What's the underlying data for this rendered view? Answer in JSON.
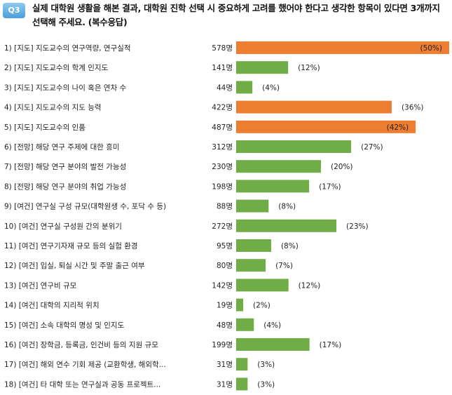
{
  "question": {
    "badge": "Q3",
    "text": "실제 대학원 생활을 해본 결과, 대학원 진학 선택 시 중요하게 고려를 했어야 한다고 생각한 항목이 있다면 3개까지 선택해 주세요. (복수응답)"
  },
  "colors": {
    "highlight": "#ed7d31",
    "normal": "#70ad47"
  },
  "chart_data": {
    "type": "bar",
    "orientation": "horizontal",
    "max_value": 578,
    "categories": [
      "1) [지도] 지도교수의 연구역량, 연구실적",
      "2) [지도] 지도교수의 학계 인지도",
      "3) [지도] 지도교수의 나이 혹은 연차 수",
      "4) [지도] 지도교수의 지도 능력",
      "5) [지도] 지도교수의 인품",
      "6) [전망] 해당 연구 주제에 대한 흥미",
      "7) [전망] 해당 연구 분야의 발전 가능성",
      "8) [전망] 해당 연구 분야의 취업 가능성",
      "9) [여건] 연구실 구성 규모(대학원생 수, 포닥 수 등)",
      "10) [여건] 연구실 구성원 간의 분위기",
      "11) [여건] 연구기자재 규모 등의 실험 환경",
      "12) [여건] 입실, 퇴실 시간 및 주말 출근 여부",
      "13) [여건] 연구비 규모",
      "14) [여건] 대학의 지리적 위치",
      "15) [여건] 소속 대학의 명성 및 인지도",
      "16) [여건] 장학금, 등록금, 인건비 등의 지원 규모",
      "17) [여건] 해외 연수 기회 제공 (교환학생, 해외학...",
      "18) [여건] 타 대학 또는 연구실과 공동 프로젝트..."
    ],
    "values": [
      578,
      141,
      44,
      422,
      487,
      312,
      230,
      198,
      88,
      272,
      95,
      80,
      142,
      19,
      48,
      199,
      31,
      31
    ],
    "count_labels": [
      "578명",
      "141명",
      "44명",
      "422명",
      "487명",
      "312명",
      "230명",
      "198명",
      "88명",
      "272명",
      "95명",
      "80명",
      "142명",
      "19명",
      "48명",
      "199명",
      "31명",
      "31명"
    ],
    "percent_labels": [
      "(50%)",
      "(12%)",
      "(4%)",
      "(36%)",
      "(42%)",
      "(27%)",
      "(20%)",
      "(17%)",
      "(8%)",
      "(23%)",
      "(8%)",
      "(7%)",
      "(12%)",
      "(2%)",
      "(4%)",
      "(17%)",
      "(3%)",
      "(3%)"
    ],
    "highlighted": [
      true,
      false,
      false,
      true,
      true,
      false,
      false,
      false,
      false,
      false,
      false,
      false,
      false,
      false,
      false,
      false,
      false,
      false
    ]
  }
}
